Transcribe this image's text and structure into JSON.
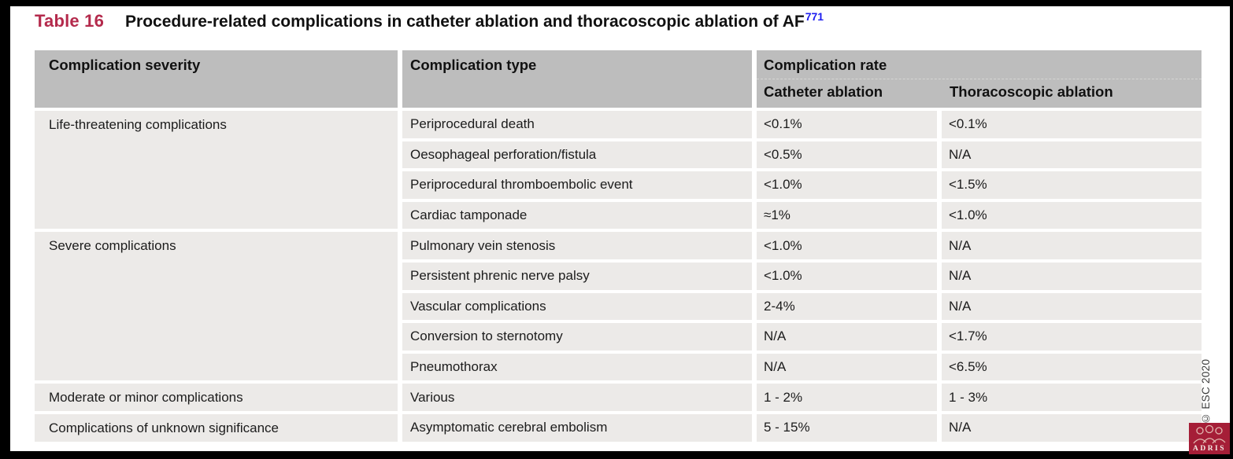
{
  "title": {
    "label": "Table 16",
    "text": "Procedure-related complications in catheter ablation and thoracoscopic ablation of AF",
    "reference": "771"
  },
  "table": {
    "headers": {
      "severity": "Complication severity",
      "type": "Complication type",
      "rate": "Complication rate",
      "catheter": "Catheter ablation",
      "thoracoscopic": "Thoracoscopic ablation"
    },
    "groups": [
      {
        "severity": "Life-threatening complications",
        "rows": [
          {
            "type": "Periprocedural death",
            "catheter": "<0.1%",
            "thoracoscopic": "<0.1%"
          },
          {
            "type": "Oesophageal perforation/fistula",
            "catheter": "<0.5%",
            "thoracoscopic": "N/A"
          },
          {
            "type": "Periprocedural thromboembolic event",
            "catheter": "<1.0%",
            "thoracoscopic": "<1.5%"
          },
          {
            "type": "Cardiac tamponade",
            "catheter": "≈1%",
            "thoracoscopic": "<1.0%"
          }
        ]
      },
      {
        "severity": "Severe complications",
        "rows": [
          {
            "type": "Pulmonary vein stenosis",
            "catheter": "<1.0%",
            "thoracoscopic": "N/A"
          },
          {
            "type": "Persistent phrenic nerve palsy",
            "catheter": "<1.0%",
            "thoracoscopic": "N/A"
          },
          {
            "type": "Vascular complications",
            "catheter": "2-4%",
            "thoracoscopic": "N/A"
          },
          {
            "type": "Conversion to sternotomy",
            "catheter": "N/A",
            "thoracoscopic": "<1.7%"
          },
          {
            "type": "Pneumothorax",
            "catheter": "N/A",
            "thoracoscopic": "<6.5%"
          }
        ]
      },
      {
        "severity": "Moderate or minor complications",
        "rows": [
          {
            "type": "Various",
            "catheter": "1 - 2%",
            "thoracoscopic": "1 - 3%"
          }
        ]
      },
      {
        "severity": "Complications of unknown significance",
        "rows": [
          {
            "type": "Asymptomatic cerebral embolism",
            "catheter": "5 - 15%",
            "thoracoscopic": "N/A"
          }
        ]
      }
    ]
  },
  "footer": {
    "copyright": "© ESC 2020",
    "logo_text": "ADRIS"
  },
  "colors": {
    "title_accent": "#b42a4c",
    "reference_link": "#1d1df0",
    "header_bg": "#bdbdbd",
    "row_bg": "#eceae8",
    "logo_bg": "#a51e37",
    "frame": "#000000"
  }
}
